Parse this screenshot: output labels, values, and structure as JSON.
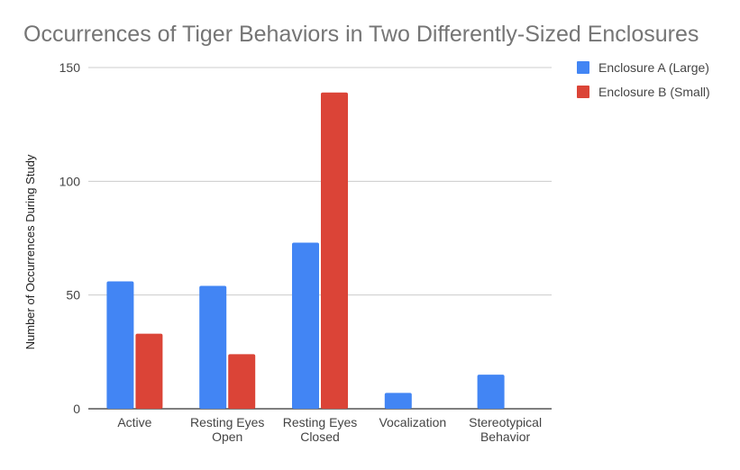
{
  "chart_data": {
    "type": "bar",
    "title": "Occurrences of Tiger Behaviors in Two Differently-Sized Enclosures",
    "xlabel": "",
    "ylabel": "Number of Occurrences During Study",
    "ylim": [
      0,
      150
    ],
    "yticks": [
      0,
      50,
      100,
      150
    ],
    "grid": true,
    "legend_position": "top-right",
    "categories": [
      [
        "Active"
      ],
      [
        "Resting Eyes",
        "Open"
      ],
      [
        "Resting Eyes",
        "Closed"
      ],
      [
        "Vocalization"
      ],
      [
        "Stereotypical",
        "Behavior"
      ]
    ],
    "series": [
      {
        "name": "Enclosure A (Large)",
        "color": "#4285F4",
        "values": [
          56,
          54,
          73,
          7,
          15
        ]
      },
      {
        "name": "Enclosure B (Small)",
        "color": "#DB4437",
        "values": [
          33,
          24,
          139,
          0,
          0
        ]
      }
    ],
    "colors": {
      "title": "#757575",
      "axis_text": "#444444",
      "grid": "#cccccc",
      "baseline": "#333333"
    }
  }
}
